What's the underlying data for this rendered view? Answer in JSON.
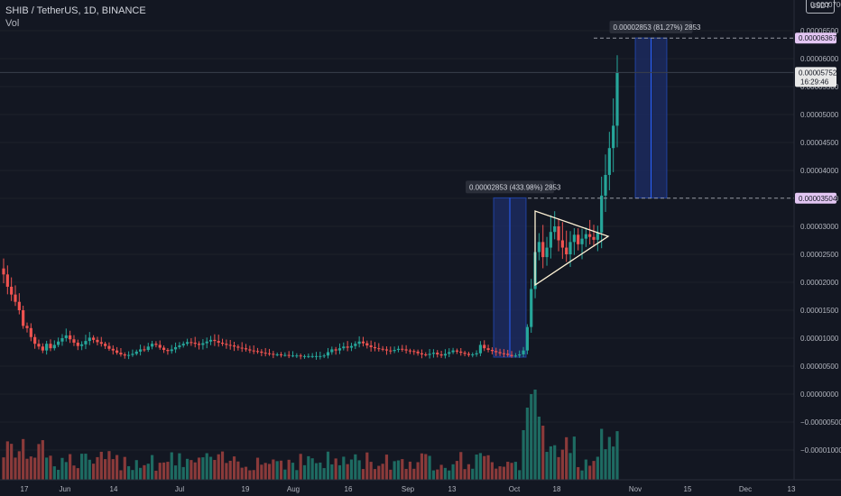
{
  "legend": {
    "symbol": "SHIB / TetherUS, 1D, BINANCE",
    "volume_label": "Vol"
  },
  "price_scale": {
    "unit": "USDT",
    "top_partial_label": "0.00007000"
  },
  "colors": {
    "background": "#131722",
    "up": "#26a69a",
    "down": "#ef5350",
    "up_volume": "#1e6b62",
    "down_volume": "#8a3a3a",
    "range_fill": "#1c2a5e",
    "range_border": "#2962ff",
    "triangle": "#fff3d6",
    "label_highlight": "#e3c6f3"
  },
  "chart_data": {
    "type": "candlestick",
    "yaxis": {
      "ticks": [
        "0.00006500",
        "0.00006000",
        "0.00005500",
        "0.00005000",
        "0.00004500",
        "0.00004000",
        "0.00003500",
        "0.00003000",
        "0.00002500",
        "0.00002000",
        "0.00001500",
        "0.00001000",
        "0.00000500",
        "0.00000000",
        "−0.00000500",
        "−0.00001000"
      ],
      "ylim": [
        -1.05e-05,
        7.2e-05
      ]
    },
    "xaxis": {
      "ticks": [
        "17",
        "Jun",
        "14",
        "Jul",
        "19",
        "Aug",
        "16",
        "Sep",
        "13",
        "Oct",
        "18",
        "Nov",
        "15",
        "Dec",
        "13"
      ]
    },
    "price_labels": {
      "target": "0.00006367",
      "current": "0.00005752",
      "countdown": "16:29:46",
      "breakout": "0.00003504"
    },
    "measurements": [
      {
        "label": "0.00002853 (433.98%) 2853",
        "from": 6.6e-06,
        "to": 3.51e-05
      },
      {
        "label": "0.00002853 (81.27%) 2853",
        "from": 3.51e-05,
        "to": 6.37e-05
      }
    ],
    "triangle_pattern": {
      "points": [
        [
          3.435e-05,
          "Oct 2"
        ],
        [
          2.03e-05,
          "Oct 2"
        ],
        [
          2.83e-05,
          "Oct 22"
        ]
      ]
    },
    "series": [
      {
        "name": "price",
        "ohlc_note": "daily candles",
        "closes": [
          2.14e-05,
          1.92e-05,
          1.78e-05,
          1.65e-05,
          1.5e-05,
          1.22e-05,
          1.18e-05,
          1.02e-05,
          9e-06,
          8.5e-06,
          7.8e-06,
          9e-06,
          8.2e-06,
          8.8e-06,
          9.4e-06,
          1e-05,
          1.05e-05,
          9.8e-06,
          9.2e-06,
          8.6e-06,
          8.9e-06,
          9.5e-06,
          1.01e-05,
          9.7e-06,
          9.3e-06,
          9e-06,
          8.6e-06,
          8.1e-06,
          7.8e-06,
          7.4e-06,
          7.1e-06,
          6.9e-06,
          7e-06,
          7.2e-06,
          7.6e-06,
          8e-06,
          7.9e-06,
          8.5e-06,
          9e-06,
          8.8e-06,
          8.3e-06,
          7.9e-06,
          7.7e-06,
          8e-06,
          8.4e-06,
          8.7e-06,
          9e-06,
          9.3e-06,
          9.2e-06,
          9e-06,
          8.8e-06,
          9.1e-06,
          9.4e-06,
          9.7e-06,
          9.5e-06,
          9.2e-06,
          9e-06,
          8.8e-06,
          8.7e-06,
          8.5e-06,
          8.3e-06,
          8.2e-06,
          8e-06,
          7.8e-06,
          7.7e-06,
          7.6e-06,
          7.4e-06,
          7.3e-06,
          7.2e-06,
          7.1e-06,
          7.1e-06,
          7e-06,
          7e-06,
          6.9e-06,
          6.9e-06,
          6.9e-06,
          6.8e-06,
          6.8e-06,
          6.8e-06,
          6.8e-06,
          6.8e-06,
          6.8e-06,
          6.9e-06,
          7.5e-06,
          8e-06,
          7.8e-06,
          8.2e-06,
          8.5e-06,
          8.3e-06,
          8.6e-06,
          9e-06,
          9.4e-06,
          9.1e-06,
          8.7e-06,
          8.4e-06,
          8.2e-06,
          8.1e-06,
          8e-06,
          7.8e-06,
          7.7e-06,
          7.9e-06,
          8.1e-06,
          8e-06,
          7.8e-06,
          7.7e-06,
          7.6e-06,
          7.3e-06,
          7.1e-06,
          7e-06,
          7.2e-06,
          7.4e-06,
          7.1e-06,
          6.9e-06,
          7.2e-06,
          7.5e-06,
          7.8e-06,
          7.6e-06,
          7.4e-06,
          7.2e-06,
          7e-06,
          7.1e-06,
          7.3e-06,
          8.8e-06,
          8.2e-06,
          7.9e-06,
          7.7e-06,
          7.5e-06,
          7.3e-06,
          7.2e-06,
          7e-06,
          6.8e-06,
          6.9e-06,
          7.1e-06,
          7.8e-06,
          1.2e-05,
          1.88e-05,
          2.54e-05,
          2.72e-05,
          2.45e-05,
          2.62e-05,
          2.9e-05,
          3e-05,
          2.75e-05,
          2.62e-05,
          2.5e-05,
          2.72e-05,
          2.85e-05,
          2.68e-05,
          2.78e-05,
          2.86e-05,
          2.81e-05,
          2.76e-05,
          2.89e-05,
          3.55e-05,
          3.92e-05,
          4.4e-05,
          4.8e-05,
          5.75e-05
        ]
      }
    ]
  }
}
